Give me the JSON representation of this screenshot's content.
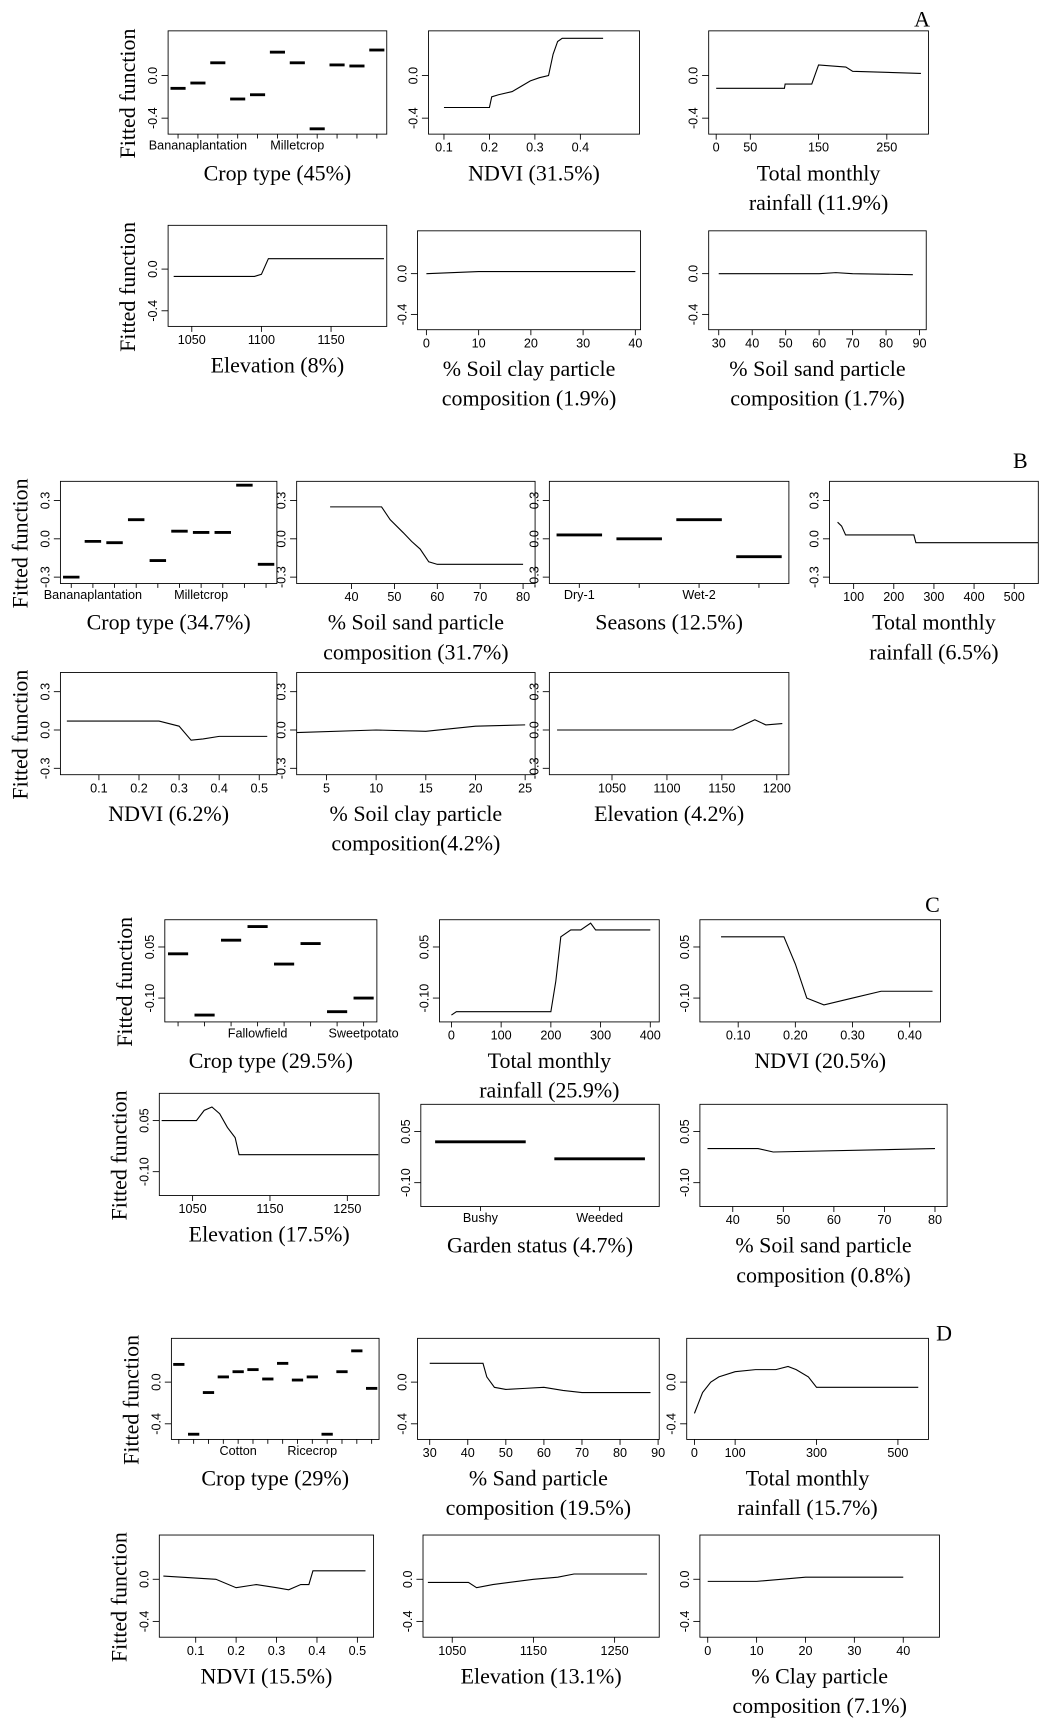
{
  "panel_labels": [
    "A",
    "B",
    "C",
    "D"
  ],
  "chart_data": [
    {
      "type": "dash",
      "ylabel": "Fitted function",
      "xlabel": [
        "Crop type (45%)"
      ],
      "categories": [
        null,
        "Bananaplantation",
        null,
        null,
        null,
        null,
        "Milletcrop",
        null,
        null,
        null,
        null
      ],
      "values": [
        -0.12,
        -0.07,
        0.12,
        -0.22,
        -0.18,
        0.22,
        0.12,
        -0.5,
        0.1,
        0.09,
        0.24
      ],
      "ylim": [
        -0.55,
        0.42
      ],
      "yticks": [
        -0.4,
        {
          "value": 0,
          "label": "0.0"
        }
      ]
    },
    {
      "type": "line",
      "xlabel": [
        "NDVI (31.5%)"
      ],
      "x": [
        0.1,
        0.2,
        0.205,
        0.22,
        0.25,
        0.27,
        0.29,
        0.31,
        0.33,
        0.34,
        0.35,
        0.36,
        0.45
      ],
      "values": [
        -0.3,
        -0.3,
        -0.2,
        -0.18,
        -0.15,
        -0.1,
        -0.05,
        -0.02,
        0.0,
        0.2,
        0.32,
        0.35,
        0.35
      ],
      "xlim": [
        0.066,
        0.53
      ],
      "xticks": [
        0.1,
        0.2,
        0.3,
        0.4
      ],
      "ylim": [
        -0.55,
        0.42
      ],
      "yticks": [
        -0.4,
        {
          "value": 0,
          "label": "0.0"
        }
      ]
    },
    {
      "type": "line",
      "xlabel": [
        "Total monthly",
        "rainfall (11.9%)"
      ],
      "x": [
        0,
        100,
        101,
        140,
        150,
        190,
        200,
        300
      ],
      "values": [
        -0.12,
        -0.12,
        -0.08,
        -0.08,
        0.1,
        0.08,
        0.04,
        0.02
      ],
      "xlim": [
        -11,
        311
      ],
      "xticks": [
        0,
        50,
        150,
        250
      ],
      "ylim": [
        -0.55,
        0.42
      ],
      "yticks": [
        -0.4,
        {
          "value": 0,
          "label": "0.0"
        }
      ]
    },
    {
      "type": "line",
      "ylabel": "Fitted function",
      "xlabel": [
        "Elevation (8%)"
      ],
      "x": [
        1037,
        1095,
        1100,
        1105,
        1188
      ],
      "values": [
        -0.07,
        -0.07,
        -0.05,
        0.1,
        0.1
      ],
      "xlim": [
        1033,
        1190
      ],
      "xticks": [
        1050,
        1100,
        1150
      ],
      "ylim": [
        -0.55,
        0.42
      ],
      "yticks": [
        -0.4,
        {
          "value": 0,
          "label": "0.0"
        }
      ]
    },
    {
      "type": "line",
      "xlabel": [
        "% Soil clay particle",
        "composition (1.9%)"
      ],
      "x": [
        0,
        10,
        40
      ],
      "values": [
        0.0,
        0.02,
        0.02
      ],
      "xlim": [
        -1.7,
        41
      ],
      "xticks": [
        0,
        10,
        20,
        30,
        40
      ],
      "ylim": [
        -0.55,
        0.42
      ],
      "yticks": [
        -0.4,
        {
          "value": 0,
          "label": "0.0"
        }
      ]
    },
    {
      "type": "line",
      "xlabel": [
        "% Soil sand particle",
        "composition (1.7%)"
      ],
      "x": [
        30,
        60,
        65,
        70,
        88
      ],
      "values": [
        0.0,
        0.0,
        0.01,
        0.0,
        -0.01
      ],
      "xlim": [
        27,
        92
      ],
      "xticks": [
        30,
        40,
        50,
        60,
        70,
        80,
        90
      ],
      "ylim": [
        -0.55,
        0.42
      ],
      "yticks": [
        -0.4,
        {
          "value": 0,
          "label": "0.0"
        }
      ]
    },
    {
      "type": "dash",
      "ylabel": "Fitted function",
      "xlabel": [
        "Crop type (34.7%)"
      ],
      "categories": [
        null,
        "Bananaplantation",
        null,
        null,
        null,
        null,
        "Milletcrop",
        null,
        null,
        null
      ],
      "values": [
        -0.3,
        -0.02,
        -0.03,
        0.15,
        -0.17,
        0.06,
        0.05,
        0.05,
        0.42,
        -0.2
      ],
      "ylim": [
        -0.35,
        0.45
      ],
      "yticks": [
        -0.3,
        {
          "value": 0,
          "label": "0.0"
        },
        0.3
      ]
    },
    {
      "type": "line",
      "xlabel": [
        "% Soil sand particle",
        "composition (31.7%)"
      ],
      "x": [
        35,
        47,
        49,
        52,
        54,
        56,
        58,
        60,
        80
      ],
      "values": [
        0.25,
        0.25,
        0.15,
        0.05,
        -0.02,
        -0.08,
        -0.18,
        -0.2,
        -0.2
      ],
      "xlim": [
        27.2,
        82.8
      ],
      "xticks": [
        40,
        50,
        60,
        70,
        80
      ],
      "ylim": [
        -0.35,
        0.45
      ],
      "yticks": [
        -0.3,
        {
          "value": 0,
          "label": "0.0"
        },
        0.3
      ]
    },
    {
      "type": "dash",
      "xlabel": [
        "Seasons (12.5%)"
      ],
      "categories": [
        "Dry-1",
        null,
        "Wet-2",
        null
      ],
      "values": [
        0.03,
        0.0,
        0.15,
        -0.14
      ],
      "ylim": [
        -0.35,
        0.45
      ],
      "yticks": [
        -0.3,
        {
          "value": 0,
          "label": "0.0"
        },
        0.3
      ]
    },
    {
      "type": "line",
      "xlabel": [
        "Total monthly",
        "rainfall (6.5%)"
      ],
      "x": [
        60,
        70,
        80,
        250,
        255,
        560
      ],
      "values": [
        0.13,
        0.1,
        0.03,
        0.03,
        -0.03,
        -0.03
      ],
      "xlim": [
        40,
        560
      ],
      "xticks": [
        100,
        200,
        300,
        400,
        500
      ],
      "ylim": [
        -0.35,
        0.45
      ],
      "yticks": [
        -0.3,
        {
          "value": 0,
          "label": "0.0"
        },
        0.3
      ]
    },
    {
      "type": "line",
      "ylabel": "Fitted function",
      "xlabel": [
        "NDVI (6.2%)"
      ],
      "x": [
        0.02,
        0.25,
        0.3,
        0.33,
        0.36,
        0.4,
        0.52
      ],
      "values": [
        0.07,
        0.07,
        0.03,
        -0.08,
        -0.07,
        -0.05,
        -0.05
      ],
      "xlim": [
        0.004,
        0.544
      ],
      "xticks": [
        0.1,
        0.2,
        0.3,
        0.4,
        0.5
      ],
      "ylim": [
        -0.35,
        0.45
      ],
      "yticks": [
        -0.3,
        {
          "value": 0,
          "label": "0.0"
        },
        0.3
      ]
    },
    {
      "type": "line",
      "xlabel": [
        "% Soil clay particle",
        "composition(4.2%)"
      ],
      "x": [
        2,
        10,
        15,
        20,
        25
      ],
      "values": [
        -0.02,
        0.0,
        -0.01,
        0.03,
        0.04
      ],
      "xlim": [
        2.0,
        26.0
      ],
      "xticks": [
        5,
        10,
        15,
        20,
        25
      ],
      "ylim": [
        -0.35,
        0.45
      ],
      "yticks": [
        -0.3,
        {
          "value": 0,
          "label": "0.0"
        },
        0.3
      ]
    },
    {
      "type": "line",
      "xlabel": [
        "Elevation (4.2%)"
      ],
      "x": [
        1000,
        1160,
        1170,
        1180,
        1190,
        1205
      ],
      "values": [
        0.0,
        0.0,
        0.04,
        0.08,
        0.04,
        0.05
      ],
      "xlim": [
        993,
        1211
      ],
      "xticks": [
        1050,
        1100,
        1150,
        1200
      ],
      "ylim": [
        -0.35,
        0.45
      ],
      "yticks": [
        -0.3,
        {
          "value": 0,
          "label": "0.0"
        },
        0.3
      ]
    },
    {
      "type": "dash",
      "ylabel": "Fitted function",
      "xlabel": [
        "Crop type (29.5%)"
      ],
      "categories": [
        null,
        null,
        null,
        "Fallowfield",
        null,
        null,
        null,
        "Sweetpotato"
      ],
      "values": [
        0.03,
        -0.15,
        0.07,
        0.11,
        0.0,
        0.06,
        -0.14,
        -0.1
      ],
      "ylim": [
        -0.17,
        0.13
      ],
      "yticks": [
        {
          "value": -0.1,
          "label": "-0.10"
        },
        0.05
      ]
    },
    {
      "type": "line",
      "xlabel": [
        "Total monthly",
        "rainfall (25.9%)"
      ],
      "x": [
        0,
        10,
        200,
        210,
        220,
        240,
        260,
        280,
        290,
        300,
        400
      ],
      "values": [
        -0.15,
        -0.14,
        -0.14,
        -0.05,
        0.08,
        0.1,
        0.1,
        0.12,
        0.1,
        0.1,
        0.1
      ],
      "xlim": [
        -24,
        418
      ],
      "xticks": [
        0,
        100,
        200,
        300,
        400
      ],
      "ylim": [
        -0.17,
        0.13
      ],
      "yticks": [
        {
          "value": -0.1,
          "label": "-0.10"
        },
        0.05
      ]
    },
    {
      "type": "line",
      "xlabel": [
        "NDVI (20.5%)"
      ],
      "x": [
        0.07,
        0.18,
        0.2,
        0.22,
        0.25,
        0.3,
        0.35,
        0.44
      ],
      "values": [
        0.08,
        0.08,
        0.0,
        -0.1,
        -0.12,
        -0.1,
        -0.08,
        -0.08
      ],
      "xlim": [
        0.033,
        0.454
      ],
      "xticks": [
        {
          "value": 0.1,
          "label": "0.10"
        },
        {
          "value": 0.2,
          "label": "0.20"
        },
        {
          "value": 0.3,
          "label": "0.30"
        },
        {
          "value": 0.4,
          "label": "0.40"
        }
      ],
      "ylim": [
        -0.17,
        0.13
      ],
      "yticks": [
        {
          "value": -0.1,
          "label": "-0.10"
        },
        0.05
      ]
    },
    {
      "type": "line",
      "ylabel": "Fitted function",
      "xlabel": [
        "Elevation (17.5%)"
      ],
      "x": [
        1010,
        1055,
        1065,
        1075,
        1085,
        1095,
        1105,
        1110,
        1290
      ],
      "values": [
        0.05,
        0.05,
        0.08,
        0.09,
        0.07,
        0.03,
        0.0,
        -0.05,
        -0.05
      ],
      "xlim": [
        1007,
        1291
      ],
      "xticks": [
        1050,
        1150,
        1250
      ],
      "ylim": [
        -0.17,
        0.13
      ],
      "yticks": [
        {
          "value": -0.1,
          "label": "-0.10"
        },
        0.05
      ]
    },
    {
      "type": "dash",
      "xlabel": [
        "Garden status (4.7%)"
      ],
      "categories": [
        "Bushy",
        "Weeded"
      ],
      "values": [
        0.02,
        -0.03
      ],
      "ylim": [
        -0.17,
        0.13
      ],
      "yticks": [
        {
          "value": -0.1,
          "label": "-0.10"
        },
        0.05
      ]
    },
    {
      "type": "line",
      "xlabel": [
        "% Soil sand particle",
        "composition (0.8%)"
      ],
      "x": [
        35,
        45,
        48,
        80
      ],
      "values": [
        0.0,
        0.0,
        -0.01,
        0.0
      ],
      "xlim": [
        33.5,
        82.4
      ],
      "xticks": [
        40,
        50,
        60,
        70,
        80
      ],
      "ylim": [
        -0.17,
        0.13
      ],
      "yticks": [
        {
          "value": -0.1,
          "label": "-0.10"
        },
        0.05
      ]
    },
    {
      "type": "dash",
      "ylabel": "Fitted function",
      "xlabel": [
        "Crop type (29%)"
      ],
      "categories": [
        null,
        null,
        null,
        null,
        "Cotton",
        null,
        null,
        null,
        null,
        "Ricecrop",
        null,
        null,
        null,
        null
      ],
      "values": [
        0.17,
        -0.5,
        -0.1,
        0.05,
        0.1,
        0.12,
        0.03,
        0.18,
        0.02,
        0.05,
        -0.5,
        0.1,
        0.3,
        -0.06
      ],
      "ylim": [
        -0.55,
        0.42
      ],
      "yticks": [
        -0.4,
        {
          "value": 0,
          "label": "0.0"
        }
      ]
    },
    {
      "type": "line",
      "xlabel": [
        "% Sand particle",
        "composition (19.5%)"
      ],
      "x": [
        30,
        44,
        45,
        47,
        50,
        55,
        60,
        65,
        70,
        88
      ],
      "values": [
        0.18,
        0.18,
        0.05,
        -0.05,
        -0.07,
        -0.06,
        -0.05,
        -0.08,
        -0.1,
        -0.1
      ],
      "xlim": [
        26.8,
        90.3
      ],
      "xticks": [
        30,
        40,
        50,
        60,
        70,
        80,
        90
      ],
      "ylim": [
        -0.55,
        0.42
      ],
      "yticks": [
        -0.4,
        {
          "value": 0,
          "label": "0.0"
        }
      ]
    },
    {
      "type": "line",
      "xlabel": [
        "Total monthly",
        "rainfall (15.7%)"
      ],
      "x": [
        0,
        10,
        20,
        40,
        60,
        100,
        150,
        200,
        230,
        250,
        280,
        300,
        320,
        550
      ],
      "values": [
        -0.3,
        -0.2,
        -0.1,
        0.0,
        0.05,
        0.1,
        0.12,
        0.12,
        0.15,
        0.12,
        0.05,
        -0.05,
        -0.05,
        -0.05
      ],
      "xlim": [
        -19,
        575
      ],
      "xticks": [
        0,
        100,
        300,
        500
      ],
      "ylim": [
        -0.55,
        0.42
      ],
      "yticks": [
        -0.4,
        {
          "value": 0,
          "label": "0.0"
        }
      ]
    },
    {
      "type": "line",
      "ylabel": "Fitted function",
      "xlabel": [
        "NDVI (15.5%)"
      ],
      "x": [
        0.02,
        0.15,
        0.2,
        0.25,
        0.3,
        0.33,
        0.36,
        0.38,
        0.39,
        0.52
      ],
      "values": [
        0.03,
        0.0,
        -0.08,
        -0.05,
        -0.08,
        -0.1,
        -0.05,
        -0.05,
        0.08,
        0.08
      ],
      "xlim": [
        0.01,
        0.54
      ],
      "xticks": [
        0.1,
        0.2,
        0.3,
        0.4,
        0.5
      ],
      "ylim": [
        -0.55,
        0.42
      ],
      "yticks": [
        -0.4,
        {
          "value": 0,
          "label": "0.0"
        }
      ]
    },
    {
      "type": "line",
      "xlabel": [
        "Elevation (13.1%)"
      ],
      "x": [
        1020,
        1070,
        1080,
        1100,
        1150,
        1180,
        1200,
        1290
      ],
      "values": [
        -0.03,
        -0.03,
        -0.08,
        -0.05,
        0.0,
        0.02,
        0.05,
        0.05
      ],
      "xlim": [
        1014,
        1305
      ],
      "xticks": [
        1050,
        1150,
        1250
      ],
      "ylim": [
        -0.55,
        0.42
      ],
      "yticks": [
        -0.4,
        {
          "value": 0,
          "label": "0.0"
        }
      ]
    },
    {
      "type": "line",
      "xlabel": [
        "% Clay particle",
        "composition (7.1%)"
      ],
      "x": [
        0,
        10,
        15,
        20,
        25,
        40
      ],
      "values": [
        -0.02,
        -0.02,
        0.0,
        0.02,
        0.02,
        0.02
      ],
      "xlim": [
        -1.6,
        47.4
      ],
      "xticks": [
        0,
        10,
        20,
        30,
        40
      ],
      "ylim": [
        -0.55,
        0.42
      ],
      "yticks": [
        -0.4,
        {
          "value": 0,
          "label": "0.0"
        }
      ]
    }
  ]
}
